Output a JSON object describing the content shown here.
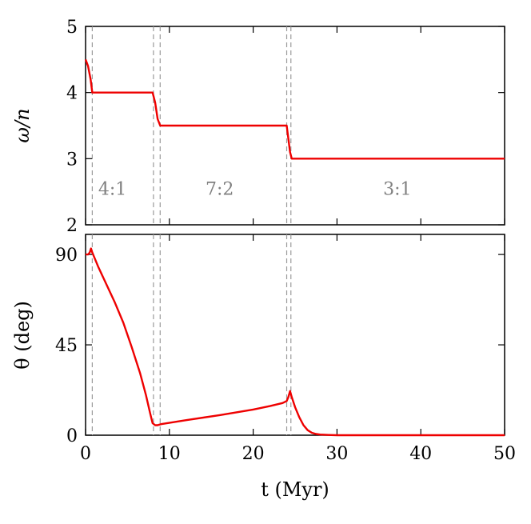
{
  "chart_data": [
    {
      "type": "line",
      "panel": "top",
      "ylabel": "ω/n",
      "xlim": [
        0,
        50
      ],
      "ylim": [
        2,
        5
      ],
      "yticks": [
        2,
        3,
        4,
        5
      ],
      "grid": false,
      "line_color": "#ee0000",
      "series": [
        {
          "x": [
            0,
            0.3,
            0.6,
            0.8,
            8.0,
            8.3,
            8.6,
            8.9,
            24.0,
            24.2,
            24.4,
            24.6,
            50
          ],
          "y": [
            4.5,
            4.4,
            4.2,
            4.0,
            4.0,
            3.85,
            3.6,
            3.5,
            3.5,
            3.3,
            3.1,
            3.0,
            3.0
          ]
        }
      ],
      "resonance_boundaries": [
        0.8,
        8.1,
        8.9,
        24.0,
        24.5
      ],
      "annotations": [
        {
          "text": "4:1",
          "x": 3.2,
          "y": 2.55
        },
        {
          "text": "7:2",
          "x": 16.0,
          "y": 2.55
        },
        {
          "text": "3:1",
          "x": 37.2,
          "y": 2.55
        }
      ]
    },
    {
      "type": "line",
      "panel": "bottom",
      "xlabel": "t (Myr)",
      "ylabel": "θ (deg)",
      "xlim": [
        0,
        50
      ],
      "ylim": [
        0,
        100
      ],
      "xticks": [
        0,
        10,
        20,
        30,
        40,
        50
      ],
      "yticks": [
        0,
        45,
        90
      ],
      "grid": false,
      "line_color": "#ee0000",
      "series": [
        {
          "x": [
            0,
            0.3,
            0.5,
            0.65,
            0.8,
            1.5,
            2.5,
            3.5,
            4.5,
            5.5,
            6.5,
            7.2,
            7.7,
            8.0,
            8.3,
            8.6,
            9.0,
            12,
            16,
            20,
            22,
            23.5,
            24.0,
            24.2,
            24.4,
            24.6,
            25.0,
            25.5,
            26.0,
            26.5,
            27.0,
            27.5,
            28.0,
            29.0,
            30.0,
            35,
            40,
            50
          ],
          "y": [
            90,
            90,
            91,
            93,
            91,
            84,
            75,
            66,
            56,
            44,
            31,
            20,
            11,
            6,
            5,
            5,
            5.5,
            7.5,
            10,
            12.8,
            14.5,
            16,
            17,
            19,
            22,
            19,
            14,
            9,
            5,
            2.5,
            1.2,
            0.6,
            0.3,
            0.1,
            0,
            0,
            0,
            0
          ]
        }
      ],
      "resonance_boundaries": [
        0.8,
        8.1,
        8.9,
        24.0,
        24.5
      ]
    }
  ]
}
